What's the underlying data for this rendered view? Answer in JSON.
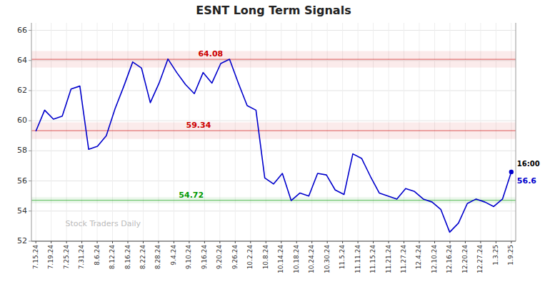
{
  "chart_data": {
    "type": "line",
    "title": "ESNT Long Term Signals",
    "color": "#0000cc",
    "values": [
      59.3,
      60.7,
      60.1,
      60.3,
      62.1,
      62.3,
      58.1,
      58.3,
      59.0,
      60.8,
      62.3,
      63.9,
      63.5,
      61.2,
      62.5,
      64.1,
      63.2,
      62.4,
      61.8,
      63.2,
      62.5,
      63.8,
      64.08,
      62.5,
      61.0,
      60.7,
      56.2,
      55.8,
      56.5,
      54.7,
      55.2,
      55.0,
      56.5,
      56.4,
      55.4,
      55.1,
      57.8,
      57.5,
      56.3,
      55.2,
      55.0,
      54.8,
      55.5,
      55.3,
      54.8,
      54.6,
      54.1,
      52.6,
      53.2,
      54.5,
      54.8,
      54.6,
      54.3,
      54.8,
      56.6
    ],
    "xlim": [
      -0.5,
      54.5
    ],
    "xticks": [
      {
        "value": 0,
        "label": "7.15.24"
      },
      {
        "value": 1.7419,
        "label": "7.19.24"
      },
      {
        "value": 3.4839,
        "label": "7.25.24"
      },
      {
        "value": 5.2258,
        "label": "7.31.24"
      },
      {
        "value": 6.9677,
        "label": "8.6.24"
      },
      {
        "value": 8.7097,
        "label": "8.12.24"
      },
      {
        "value": 10.4516,
        "label": "8.16.24"
      },
      {
        "value": 12.1935,
        "label": "8.22.24"
      },
      {
        "value": 13.9355,
        "label": "8.28.24"
      },
      {
        "value": 15.6774,
        "label": "9.4.24"
      },
      {
        "value": 17.4194,
        "label": "9.10.24"
      },
      {
        "value": 19.1613,
        "label": "9.16.24"
      },
      {
        "value": 20.9032,
        "label": "9.20.24"
      },
      {
        "value": 22.6452,
        "label": "9.26.24"
      },
      {
        "value": 24.3871,
        "label": "10.2.24"
      },
      {
        "value": 26.129,
        "label": "10.8.24"
      },
      {
        "value": 27.871,
        "label": "10.14.24"
      },
      {
        "value": 29.6129,
        "label": "10.18.24"
      },
      {
        "value": 31.3548,
        "label": "10.24.24"
      },
      {
        "value": 33.0968,
        "label": "10.30.24"
      },
      {
        "value": 34.8387,
        "label": "11.5.24"
      },
      {
        "value": 36.5806,
        "label": "11.11.24"
      },
      {
        "value": 38.3226,
        "label": "11.15.24"
      },
      {
        "value": 40.0645,
        "label": "11.21.24"
      },
      {
        "value": 41.8065,
        "label": "11.27.24"
      },
      {
        "value": 43.5484,
        "label": "12.4.24"
      },
      {
        "value": 45.2903,
        "label": "12.10.24"
      },
      {
        "value": 47.0323,
        "label": "12.16.24"
      },
      {
        "value": 48.7742,
        "label": "12.20.24"
      },
      {
        "value": 50.5161,
        "label": "12.27.24"
      },
      {
        "value": 52.2581,
        "label": "1.3.25"
      },
      {
        "value": 54,
        "label": "1.9.25"
      }
    ],
    "ylim": [
      52,
      66.5
    ],
    "yticks": [
      52,
      54,
      56,
      58,
      60,
      62,
      64,
      66
    ],
    "grid": true,
    "reference_lines": [
      {
        "value": 64.08,
        "label": "64.08",
        "color": "#cc0000",
        "band": 0.55
      },
      {
        "value": 59.34,
        "label": "59.34",
        "color": "#cc0000",
        "band": 0.55
      },
      {
        "value": 54.72,
        "label": "54.72",
        "color": "#009900",
        "band": 0.2
      }
    ],
    "annotations": [
      {
        "text": "16:00",
        "x": 54,
        "y": 56.6
      },
      {
        "text": "56.6",
        "x": 54,
        "y": 56.6,
        "color": "#0000cc"
      }
    ],
    "watermark": "Stock Traders Daily"
  }
}
